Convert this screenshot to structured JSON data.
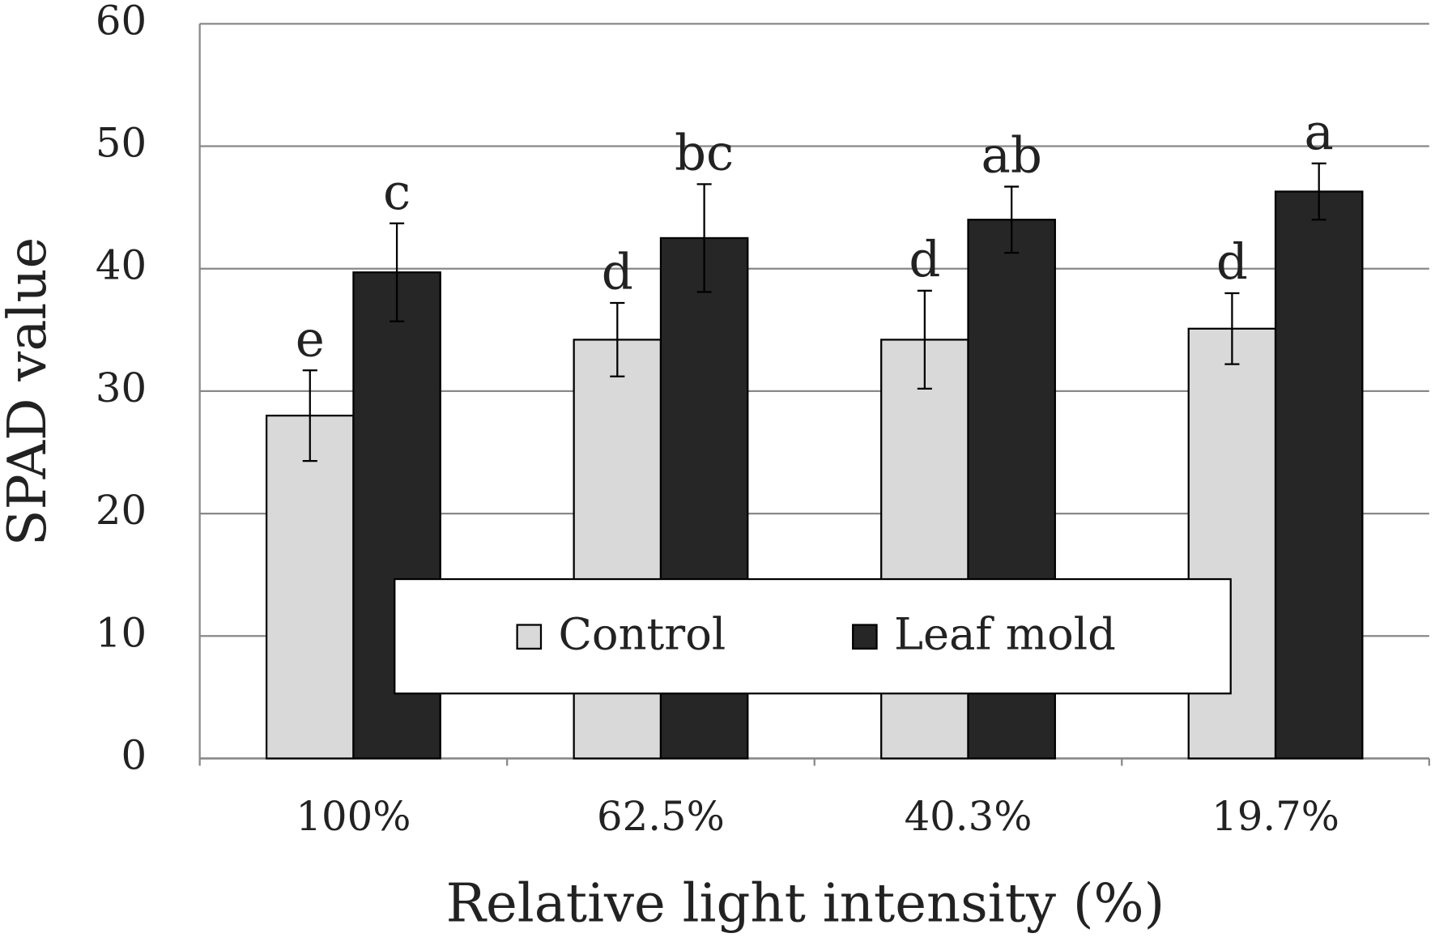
{
  "chart_data": {
    "type": "bar",
    "x_label": "Relative light intensity (%)",
    "y_label": "SPAD value",
    "categories": [
      "100%",
      "62.5%",
      "40.3%",
      "19.7%"
    ],
    "series": [
      {
        "name": "Control",
        "color": "#d9d9d9",
        "values": [
          28,
          34.2,
          34.2,
          35.1
        ],
        "errors": [
          3.7,
          3,
          4,
          2.9
        ],
        "letters": [
          "e",
          "d",
          "d",
          "d"
        ]
      },
      {
        "name": "Leaf mold",
        "color": "#262626",
        "values": [
          39.7,
          42.5,
          44,
          46.3
        ],
        "errors": [
          4,
          4.4,
          2.7,
          2.3
        ],
        "letters": [
          "c",
          "bc",
          "ab",
          "a"
        ]
      }
    ],
    "ylim": [
      0,
      60
    ],
    "yticks": [
      0,
      10,
      20,
      30,
      40,
      50,
      60
    ],
    "grid": true,
    "legend": "bottom-center"
  }
}
